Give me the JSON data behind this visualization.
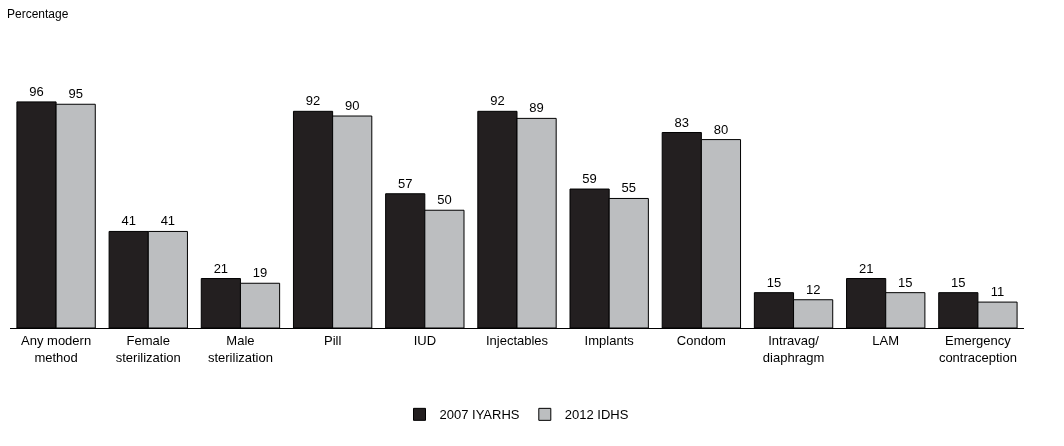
{
  "chart_data": {
    "type": "bar",
    "annotations": [
      "Percentage"
    ],
    "categories": [
      "Any modern\nmethod",
      "Female\nsterilization",
      "Male\nsterilization",
      "Pill",
      "IUD",
      "Injectables",
      "Implants",
      "Condom",
      "Intravag/\ndiaphragm",
      "LAM",
      "Emergency\ncontraception"
    ],
    "series": [
      {
        "name": "2007 IYARHS",
        "color": "#231f20",
        "values": [
          96,
          41,
          21,
          92,
          57,
          92,
          59,
          83,
          15,
          21,
          15
        ]
      },
      {
        "name": "2012 IDHS",
        "color": "#bcbec0",
        "values": [
          95,
          41,
          19,
          90,
          50,
          89,
          55,
          80,
          12,
          15,
          11
        ]
      }
    ],
    "data_labels": true,
    "legend": "bottom",
    "tick_labels": "x"
  }
}
